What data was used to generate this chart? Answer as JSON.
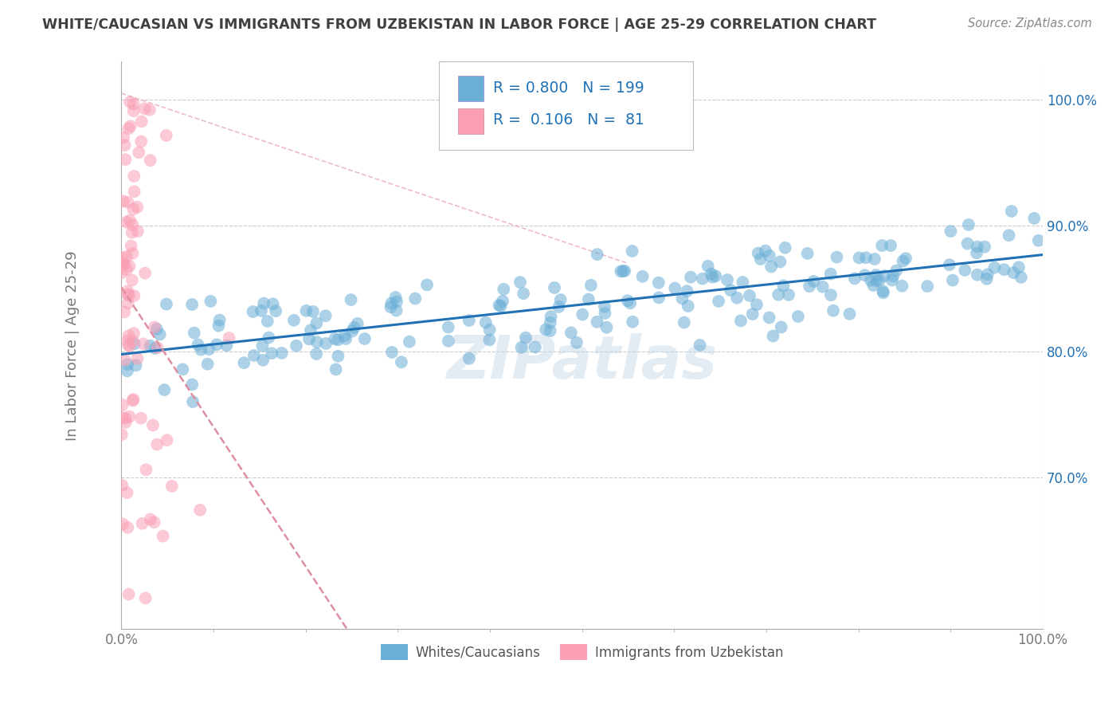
{
  "title": "WHITE/CAUCASIAN VS IMMIGRANTS FROM UZBEKISTAN IN LABOR FORCE | AGE 25-29 CORRELATION CHART",
  "source_text": "Source: ZipAtlas.com",
  "xlabel": "",
  "ylabel": "In Labor Force | Age 25-29",
  "xlim": [
    0.0,
    1.0
  ],
  "ylim": [
    0.58,
    1.03
  ],
  "xtick_labels": [
    "0.0%",
    "100.0%"
  ],
  "ytick_labels": [
    "70.0%",
    "80.0%",
    "90.0%",
    "100.0%"
  ],
  "ytick_positions": [
    0.7,
    0.8,
    0.9,
    1.0
  ],
  "grid_color": "#cccccc",
  "background_color": "#ffffff",
  "blue_color": "#6baed6",
  "pink_color": "#fa9fb5",
  "blue_line_color": "#2171b5",
  "pink_line_color": "#de8fa0",
  "R_blue": 0.8,
  "N_blue": 199,
  "R_pink": 0.106,
  "N_pink": 81,
  "watermark": "ZIPatlas",
  "legend_label_blue": "Whites/Caucasians",
  "legend_label_pink": "Immigrants from Uzbekistan",
  "title_color": "#404040",
  "source_color": "#888888",
  "stat_color": "#2171b5"
}
